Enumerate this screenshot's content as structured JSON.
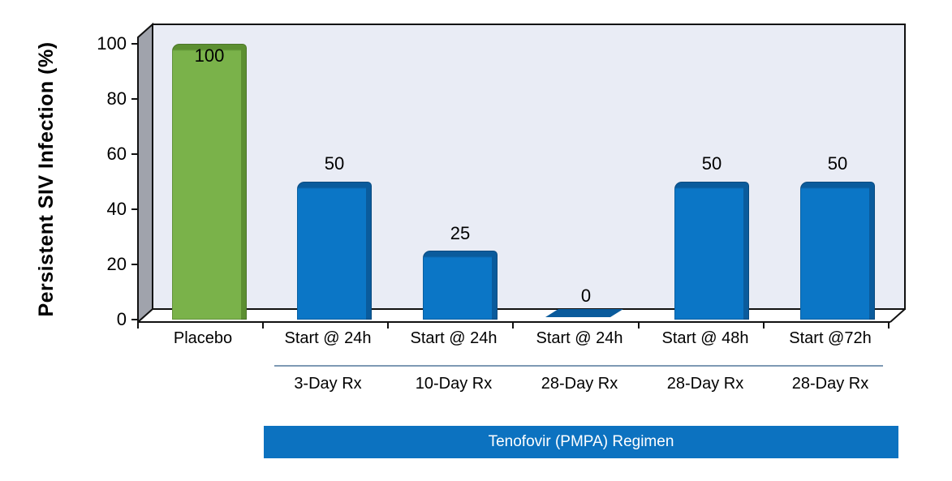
{
  "chart_data": {
    "type": "bar",
    "title": "",
    "ylabel": "Persistent SIV Infection (%)",
    "xlabel": "",
    "ylim": [
      0,
      100
    ],
    "ytick_labels": [
      "100",
      "80",
      "60",
      "40",
      "20",
      "0"
    ],
    "categories": [
      "Placebo",
      "Start @ 24h",
      "Start @ 24h",
      "Start @ 24h",
      "Start @ 48h",
      "Start @72h"
    ],
    "sub_labels": [
      "3-Day Rx",
      "10-Day Rx",
      "28-Day Rx",
      "28-Day Rx",
      "28-Day Rx"
    ],
    "values": [
      100,
      50,
      25,
      0,
      50,
      50
    ],
    "value_labels": [
      "100",
      "50",
      "25",
      "0",
      "50",
      "50"
    ],
    "bar_colors": [
      "#7AB24A",
      "#0B76C6",
      "#0B76C6",
      "#0B76C6",
      "#0B76C6",
      "#0B76C6"
    ],
    "bar_edge_colors": [
      "#5C8F31",
      "#0A5B9C",
      "#0A5B9C",
      "#0A5B9C",
      "#0A5B9C",
      "#0A5B9C"
    ],
    "group_label": "Tenofovir (PMPA) Regimen",
    "grid": false,
    "legend_position": "none",
    "style": "3d-bevel-bars"
  },
  "colors": {
    "bar_blue": "#0B76C6",
    "bar_blue_dark": "#0A5B9C",
    "bar_green": "#7AB24A",
    "bar_green_dark": "#5C8F31",
    "plot_bg": "#E9ECF5",
    "wall_gray": "#A0A3AC",
    "banner_bg": "#0C72C0",
    "banner_text": "#FFFFFF"
  }
}
